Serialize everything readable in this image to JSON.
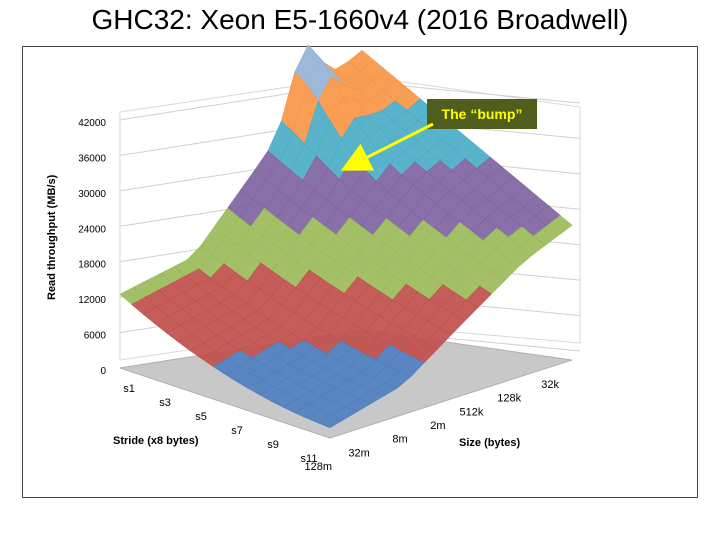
{
  "slide": {
    "title": "GHC32: Xeon E5-1660v4 (2016 Broadwell)"
  },
  "chart_data": {
    "type": "surface",
    "zlabel": "Read throughput (MB/s)",
    "xlabel": "Size (bytes)",
    "ylabel": "Stride (x8 bytes)",
    "zlim": [
      0,
      42000
    ],
    "z_ticks": [
      "0",
      "6000",
      "12000",
      "18000",
      "24000",
      "30000",
      "36000",
      "42000"
    ],
    "size_labels": [
      "32k",
      "128k",
      "512k",
      "2m",
      "8m",
      "32m",
      "128m"
    ],
    "stride_labels": [
      "s1",
      "s3",
      "s5",
      "s7",
      "s9",
      "s11"
    ],
    "band_colors": [
      "#4f7fbf",
      "#c0504d",
      "#9bbb59",
      "#8064a2",
      "#4bacc6",
      "#f79646",
      "#95b3d7"
    ],
    "annotation": {
      "text": "The “bump”",
      "bg": "#4f5d1d",
      "fg": "#ffff00"
    }
  }
}
